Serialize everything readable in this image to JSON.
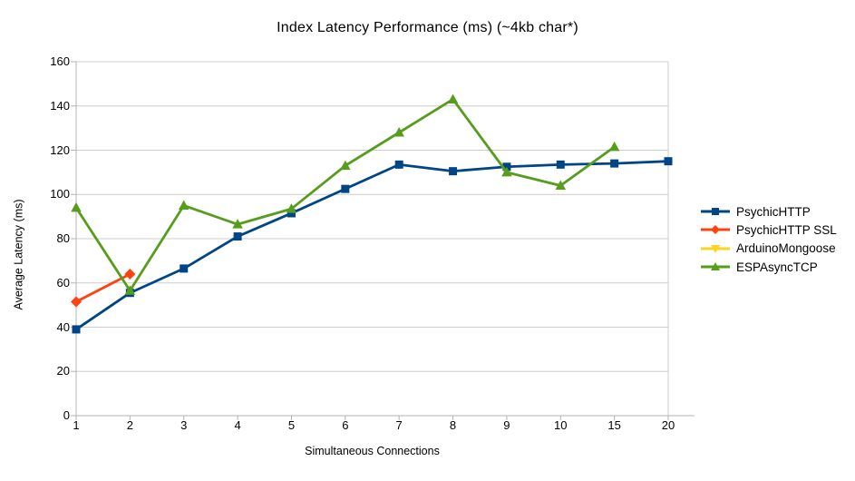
{
  "title": "Index Latency Performance (ms) (~4kb char*)",
  "chart_data": {
    "type": "line",
    "title": "Index Latency Performance (ms) (~4kb char*)",
    "xlabel": "Simultaneous Connections",
    "ylabel": "Average Latency (ms)",
    "categories": [
      "1",
      "2",
      "3",
      "4",
      "5",
      "6",
      "7",
      "8",
      "9",
      "10",
      "15",
      "20"
    ],
    "y_ticks": [
      0,
      20,
      40,
      60,
      80,
      100,
      120,
      140,
      160
    ],
    "ylim": [
      0,
      160
    ],
    "grid": "horizontal",
    "legend_position": "right",
    "series": [
      {
        "name": "PsychicHTTP",
        "color": "#004586",
        "marker": "square",
        "values": [
          39,
          55.5,
          66.5,
          81,
          91.5,
          102.5,
          113.5,
          110.5,
          112.5,
          113.5,
          114,
          115
        ]
      },
      {
        "name": "PsychicHTTP SSL",
        "color": "#ff420e",
        "marker": "diamond",
        "values": [
          51.5,
          64,
          null,
          null,
          null,
          null,
          null,
          null,
          null,
          null,
          null,
          null
        ]
      },
      {
        "name": "ArduinoMongoose",
        "color": "#ffd320",
        "marker": "triangle-down",
        "values": [
          null,
          null,
          null,
          null,
          null,
          null,
          null,
          null,
          null,
          null,
          null,
          null
        ]
      },
      {
        "name": "ESPAsyncTCP",
        "color": "#579d1c",
        "marker": "triangle-up",
        "values": [
          94,
          56.5,
          95,
          86.5,
          93.5,
          113,
          128,
          143,
          110,
          104,
          121.5,
          null
        ]
      }
    ]
  },
  "colors": {
    "grid": "#cccccc",
    "axis": "#b3b3b3",
    "text": "#000000",
    "background": "#ffffff"
  }
}
